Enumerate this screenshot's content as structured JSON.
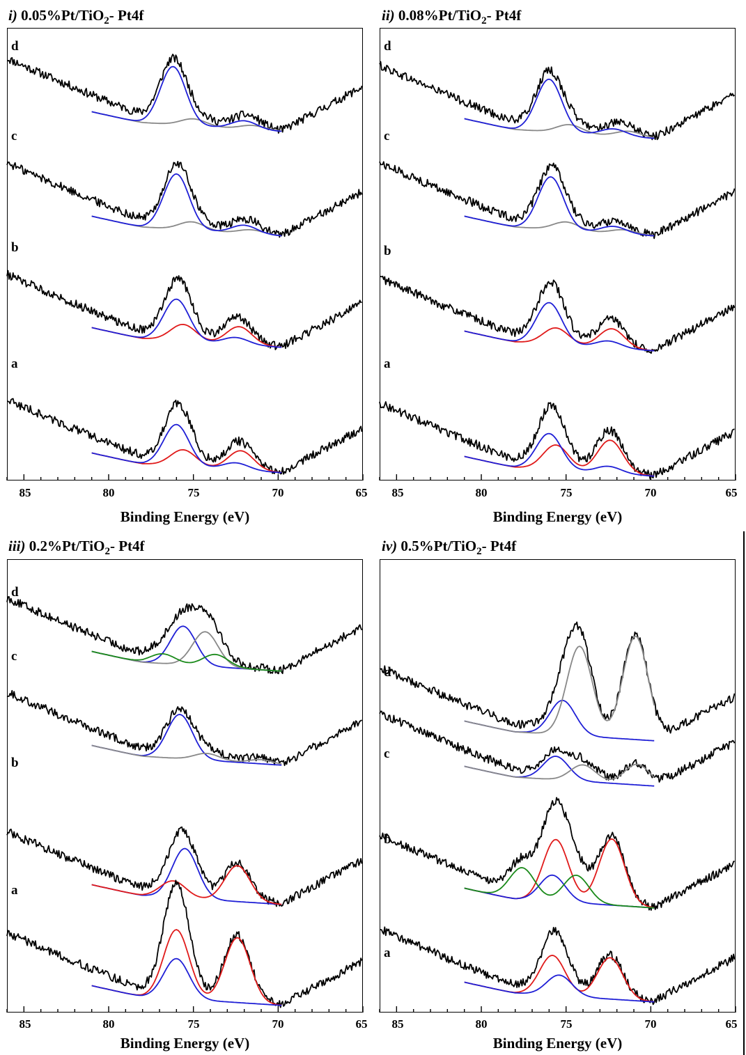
{
  "chart_data": [
    {
      "type": "line",
      "panel": "i)",
      "title_rest": "0.05%Pt/TiO",
      "title_sub": "2",
      "title_tail": "- Pt4f",
      "xlabel": "Binding Energy (eV)",
      "xlim": [
        86,
        65
      ],
      "xticks": [
        "85",
        "80",
        "75",
        "70",
        "65"
      ],
      "spectra": [
        {
          "label": "d",
          "components": [
            {
              "color": "#888888",
              "peaks": [
                [
                  75.0,
                  0.5
                ],
                [
                  71.5,
                  0.3
                ]
              ]
            },
            {
              "color": "#1f1fd6",
              "peaks": [
                [
                  76.2,
                  4.2
                ],
                [
                  72.0,
                  0.6
                ]
              ]
            }
          ]
        },
        {
          "label": "c",
          "components": [
            {
              "color": "#888888",
              "peaks": [
                [
                  75.1,
                  0.6
                ],
                [
                  71.6,
                  0.3
                ]
              ]
            },
            {
              "color": "#1f1fd6",
              "peaks": [
                [
                  76.0,
                  4.0
                ],
                [
                  72.0,
                  0.6
                ]
              ]
            }
          ]
        },
        {
          "label": "b",
          "components": [
            {
              "color": "#e01a1a",
              "peaks": [
                [
                  75.6,
                  1.2
                ],
                [
                  72.3,
                  1.3
                ]
              ]
            },
            {
              "color": "#1f1fd6",
              "peaks": [
                [
                  76.0,
                  3.0
                ],
                [
                  72.5,
                  0.5
                ]
              ]
            }
          ]
        },
        {
          "label": "a",
          "components": [
            {
              "color": "#e01a1a",
              "peaks": [
                [
                  75.6,
                  1.2
                ],
                [
                  72.2,
                  1.4
                ]
              ]
            },
            {
              "color": "#1f1fd6",
              "peaks": [
                [
                  76.0,
                  3.0
                ],
                [
                  72.5,
                  0.5
                ]
              ]
            }
          ]
        }
      ]
    },
    {
      "type": "line",
      "panel": "ii)",
      "title_rest": "0.08%Pt/TiO",
      "title_sub": "2",
      "title_tail": "- Pt4f",
      "xlabel": "Binding Energy (eV)",
      "xlim": [
        86,
        65
      ],
      "xticks": [
        "85",
        "80",
        "75",
        "70",
        "65"
      ],
      "spectra": [
        {
          "label": "d",
          "components": [
            {
              "color": "#888888",
              "peaks": [
                [
                  74.8,
                  0.6
                ],
                [
                  71.3,
                  0.4
                ]
              ]
            },
            {
              "color": "#1f1fd6",
              "peaks": [
                [
                  76.0,
                  3.8
                ],
                [
                  72.2,
                  0.5
                ]
              ]
            }
          ]
        },
        {
          "label": "c",
          "components": [
            {
              "color": "#888888",
              "peaks": [
                [
                  75.0,
                  0.6
                ],
                [
                  71.6,
                  0.3
                ]
              ]
            },
            {
              "color": "#1f1fd6",
              "peaks": [
                [
                  75.9,
                  3.8
                ],
                [
                  72.2,
                  0.5
                ]
              ]
            }
          ]
        },
        {
          "label": "b",
          "components": [
            {
              "color": "#e01a1a",
              "peaks": [
                [
                  75.6,
                  1.2
                ],
                [
                  72.3,
                  1.4
                ]
              ]
            },
            {
              "color": "#1f1fd6",
              "peaks": [
                [
                  76.0,
                  3.0
                ],
                [
                  72.5,
                  0.5
                ]
              ]
            }
          ]
        },
        {
          "label": "a",
          "components": [
            {
              "color": "#e01a1a",
              "peaks": [
                [
                  75.6,
                  1.8
                ],
                [
                  72.4,
                  2.4
                ]
              ]
            },
            {
              "color": "#1f1fd6",
              "peaks": [
                [
                  76.0,
                  2.6
                ],
                [
                  72.5,
                  0.5
                ]
              ]
            }
          ]
        }
      ]
    },
    {
      "type": "line",
      "panel": "iii)",
      "title_rest": "0.2%Pt/TiO",
      "title_sub": "2",
      "title_tail": "- Pt4f",
      "xlabel": "Binding Energy (eV)",
      "xlim": [
        86,
        65
      ],
      "xticks": [
        "85",
        "80",
        "75",
        "70",
        "65"
      ],
      "spectra": [
        {
          "label": "d",
          "components": [
            {
              "color": "#1f1fd6",
              "peaks": [
                [
                  75.6,
                  2.8
                ]
              ]
            },
            {
              "color": "#888888",
              "peaks": [
                [
                  74.3,
                  2.5
                ]
              ]
            },
            {
              "color": "#1a8a1a",
              "peaks": [
                [
                  76.8,
                  0.7
                ],
                [
                  73.7,
                  0.9
                ]
              ]
            }
          ]
        },
        {
          "label": "c",
          "components": [
            {
              "color": "#1f1fd6",
              "peaks": [
                [
                  75.8,
                  3.2
                ]
              ]
            },
            {
              "color": "#888888",
              "peaks": [
                [
                  74.2,
                  0.5
                ],
                [
                  71.0,
                  0.3
                ]
              ]
            }
          ]
        },
        {
          "label": "b",
          "components": [
            {
              "color": "#1f1fd6",
              "peaks": [
                [
                  75.5,
                  3.6
                ]
              ]
            },
            {
              "color": "#e01a1a",
              "peaks": [
                [
                  76.2,
                  1.2
                ],
                [
                  72.4,
                  2.6
                ]
              ]
            }
          ]
        },
        {
          "label": "a",
          "components": [
            {
              "color": "#e01a1a",
              "peaks": [
                [
                  76.0,
                  5.0
                ],
                [
                  72.4,
                  4.7
                ]
              ]
            },
            {
              "color": "#1f1fd6",
              "peaks": [
                [
                  76.0,
                  2.9
                ]
              ]
            }
          ]
        }
      ]
    },
    {
      "type": "line",
      "panel": "iv)",
      "title_rest": "0.5%Pt/TiO",
      "title_sub": "2",
      "title_tail": "- Pt4f",
      "xlabel": "Binding Energy (eV)",
      "xlim": [
        86,
        65
      ],
      "xticks": [
        "85",
        "80",
        "75",
        "70",
        "65"
      ],
      "spectra": [
        {
          "label": "d",
          "components": [
            {
              "color": "#1f1fd6",
              "peaks": [
                [
                  75.2,
                  2.5
                ]
              ]
            },
            {
              "color": "#888888",
              "peaks": [
                [
                  74.2,
                  6.5
                ],
                [
                  70.9,
                  7.5
                ]
              ]
            }
          ]
        },
        {
          "label": "c",
          "components": [
            {
              "color": "#1f1fd6",
              "peaks": [
                [
                  75.6,
                  1.7
                ]
              ]
            },
            {
              "color": "#888888",
              "peaks": [
                [
                  74.0,
                  1.2
                ],
                [
                  70.8,
                  1.5
                ]
              ]
            }
          ]
        },
        {
          "label": "b",
          "components": [
            {
              "color": "#e01a1a",
              "peaks": [
                [
                  75.6,
                  4.5
                ],
                [
                  72.3,
                  4.8
                ]
              ]
            },
            {
              "color": "#1f1fd6",
              "peaks": [
                [
                  75.8,
                  1.9
                ]
              ]
            },
            {
              "color": "#1a8a1a",
              "peaks": [
                [
                  77.6,
                  2.3
                ],
                [
                  74.4,
                  2.0
                ]
              ]
            }
          ]
        },
        {
          "label": "a",
          "components": [
            {
              "color": "#e01a1a",
              "peaks": [
                [
                  75.8,
                  2.9
                ],
                [
                  72.4,
                  3.0
                ]
              ]
            },
            {
              "color": "#1f1fd6",
              "peaks": [
                [
                  75.4,
                  1.5
                ]
              ]
            }
          ]
        }
      ]
    }
  ]
}
